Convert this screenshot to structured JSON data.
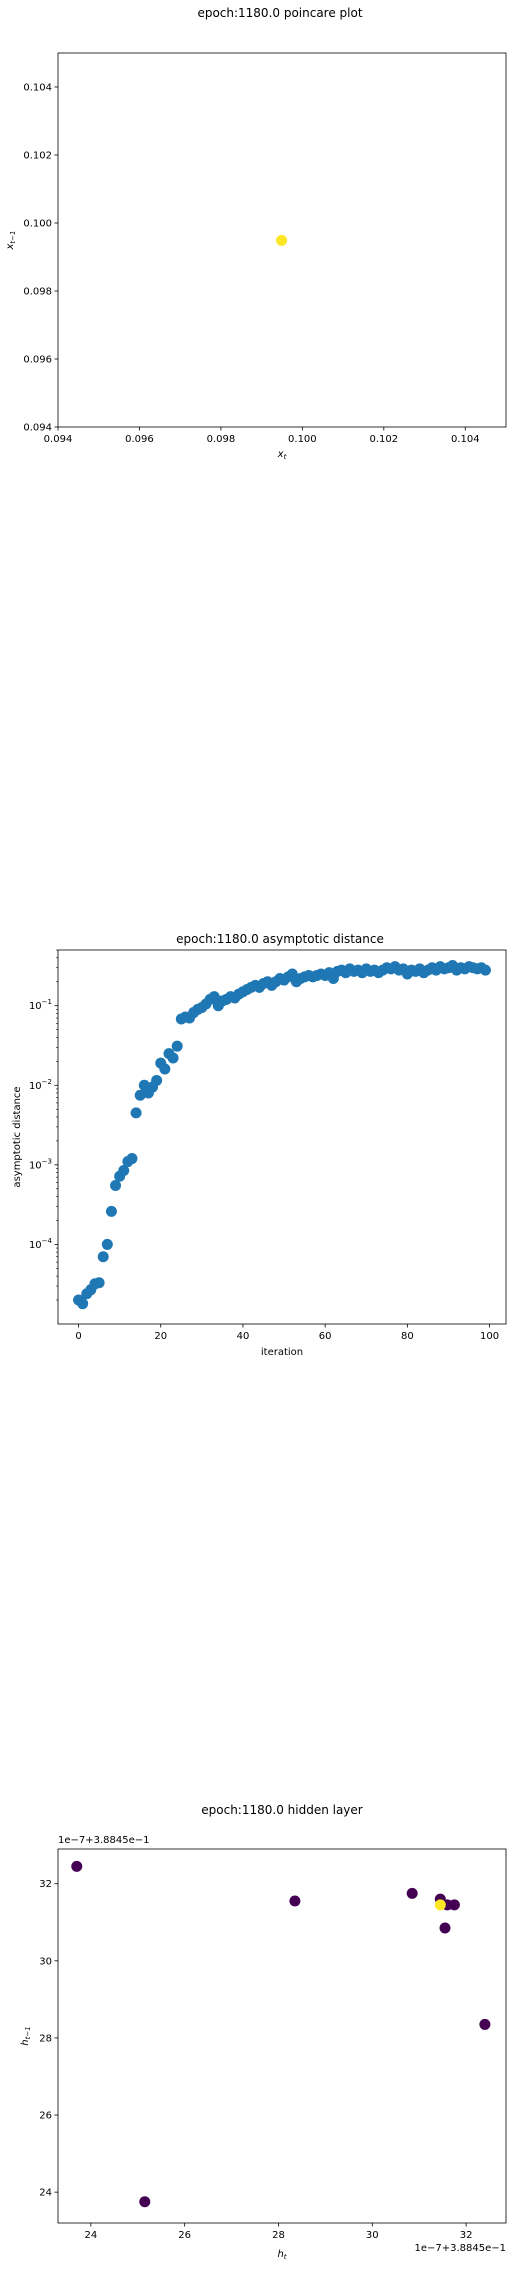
{
  "chart_data": [
    {
      "type": "scatter",
      "title": "epoch:1180.0 poincare plot",
      "xlabel": "x_t",
      "ylabel": "x_{t-1}",
      "xlim": [
        0.094,
        0.105
      ],
      "ylim": [
        0.094,
        0.105
      ],
      "xticks": [
        "0.094",
        "0.096",
        "0.098",
        "0.100",
        "0.102",
        "0.104"
      ],
      "yticks": [
        "0.094",
        "0.096",
        "0.098",
        "0.100",
        "0.102",
        "0.104"
      ],
      "points": [
        {
          "x": 0.09949,
          "y": 0.09949,
          "color": "#fde725"
        }
      ]
    },
    {
      "type": "scatter",
      "title": "epoch:1180.0 asymptotic distance",
      "xlabel": "iteration",
      "ylabel": "asymptotic distance",
      "yscale": "log",
      "xlim": [
        -5,
        104
      ],
      "ylim_log": [
        -5,
        -0.3
      ],
      "xticks": [
        "0",
        "20",
        "40",
        "60",
        "80",
        "100"
      ],
      "yticks": [
        "10^-4",
        "10^-3",
        "10^-2",
        "10^-1"
      ],
      "color": "#1f77b4",
      "x": [
        0,
        1,
        2,
        3,
        4,
        5,
        6,
        7,
        8,
        9,
        10,
        11,
        12,
        13,
        14,
        15,
        16,
        17,
        18,
        19,
        20,
        21,
        22,
        23,
        24,
        25,
        26,
        27,
        28,
        29,
        30,
        31,
        32,
        33,
        34,
        35,
        36,
        37,
        38,
        39,
        40,
        41,
        42,
        43,
        44,
        45,
        46,
        47,
        48,
        49,
        50,
        51,
        52,
        53,
        54,
        55,
        56,
        57,
        58,
        59,
        60,
        61,
        62,
        63,
        64,
        65,
        66,
        67,
        68,
        69,
        70,
        71,
        72,
        73,
        74,
        75,
        76,
        77,
        78,
        79,
        80,
        81,
        82,
        83,
        84,
        85,
        86,
        87,
        88,
        89,
        90,
        91,
        92,
        93,
        94,
        95,
        96,
        97,
        98,
        99
      ],
      "y": [
        2e-05,
        1.8e-05,
        2.4e-05,
        2.7e-05,
        3.2e-05,
        3.3e-05,
        7e-05,
        0.0001,
        0.00026,
        0.00055,
        0.00072,
        0.00085,
        0.0011,
        0.0012,
        0.0045,
        0.0075,
        0.01,
        0.008,
        0.0095,
        0.0115,
        0.019,
        0.016,
        0.025,
        0.022,
        0.031,
        0.068,
        0.072,
        0.07,
        0.082,
        0.09,
        0.095,
        0.105,
        0.12,
        0.13,
        0.1,
        0.115,
        0.12,
        0.13,
        0.125,
        0.14,
        0.15,
        0.16,
        0.17,
        0.18,
        0.17,
        0.19,
        0.2,
        0.18,
        0.2,
        0.22,
        0.21,
        0.23,
        0.25,
        0.2,
        0.22,
        0.23,
        0.24,
        0.23,
        0.24,
        0.25,
        0.24,
        0.26,
        0.22,
        0.27,
        0.28,
        0.26,
        0.29,
        0.27,
        0.28,
        0.26,
        0.29,
        0.27,
        0.28,
        0.26,
        0.28,
        0.3,
        0.29,
        0.31,
        0.28,
        0.29,
        0.25,
        0.28,
        0.27,
        0.29,
        0.26,
        0.28,
        0.3,
        0.28,
        0.31,
        0.29,
        0.3,
        0.32,
        0.28,
        0.3,
        0.29,
        0.31,
        0.3,
        0.29,
        0.3,
        0.28
      ]
    },
    {
      "type": "scatter",
      "title": "epoch:1180.0 hidden layer",
      "xlabel": "h_t",
      "ylabel": "h_{t-1}",
      "offset_text_y": "1e−7+3.8845e−1",
      "offset_text_x": "1e−7+3.8845e−1",
      "xlim": [
        23.3,
        32.85
      ],
      "ylim": [
        23.2,
        32.9
      ],
      "xticks": [
        "24",
        "26",
        "28",
        "30",
        "32"
      ],
      "yticks": [
        "24",
        "26",
        "28",
        "30",
        "32"
      ],
      "points": [
        {
          "x": 23.7,
          "y": 32.45,
          "color": "#440154"
        },
        {
          "x": 25.15,
          "y": 23.75,
          "color": "#440154"
        },
        {
          "x": 28.35,
          "y": 31.55,
          "color": "#440154"
        },
        {
          "x": 30.85,
          "y": 31.75,
          "color": "#440154"
        },
        {
          "x": 31.45,
          "y": 31.6,
          "color": "#440154"
        },
        {
          "x": 31.6,
          "y": 31.45,
          "color": "#440154"
        },
        {
          "x": 31.75,
          "y": 31.45,
          "color": "#440154"
        },
        {
          "x": 31.55,
          "y": 30.85,
          "color": "#440154"
        },
        {
          "x": 32.4,
          "y": 28.35,
          "color": "#440154"
        },
        {
          "x": 31.45,
          "y": 31.45,
          "color": "#fde725"
        }
      ]
    }
  ]
}
